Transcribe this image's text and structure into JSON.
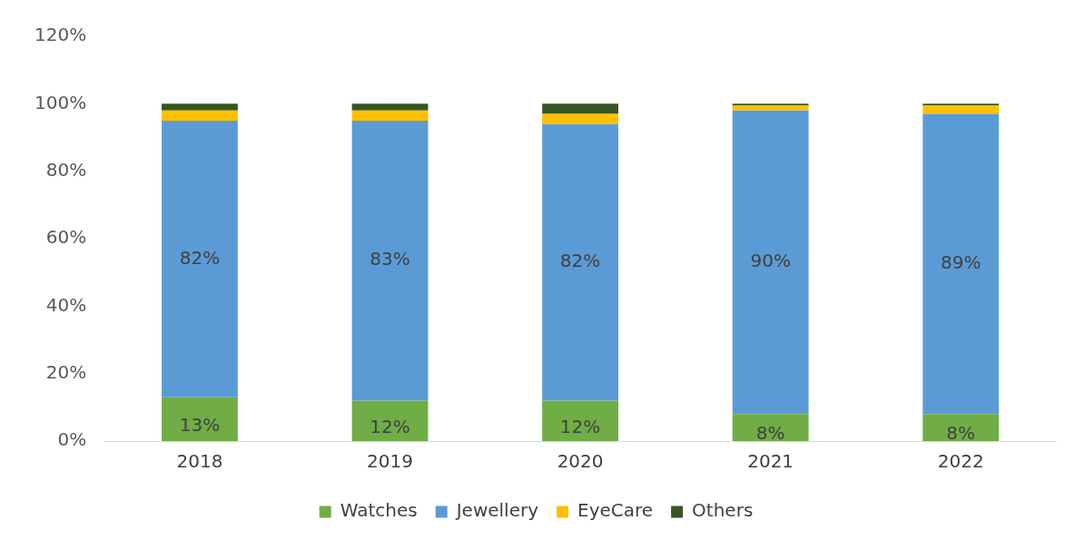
{
  "chart_data": {
    "type": "bar",
    "stacked": true,
    "categories": [
      "2018",
      "2019",
      "2020",
      "2021",
      "2022"
    ],
    "series": [
      {
        "name": "Watches",
        "color": "#70ad47",
        "values": [
          13,
          12,
          12,
          8,
          8
        ],
        "value_labels": [
          "13%",
          "12%",
          "12%",
          "8%",
          "8%"
        ]
      },
      {
        "name": "Jewellery",
        "color": "#5b9bd5",
        "values": [
          82,
          83,
          82,
          90,
          89
        ],
        "value_labels": [
          "82%",
          "83%",
          "82%",
          "90%",
          "89%"
        ]
      },
      {
        "name": "EyeCare",
        "color": "#ffc000",
        "values": [
          3,
          3,
          3,
          1.5,
          2.5
        ]
      },
      {
        "name": "Others",
        "color": "#375623",
        "values": [
          2,
          2,
          3,
          0.5,
          0.5
        ]
      }
    ],
    "ylim": [
      0,
      120
    ],
    "yticks": [
      {
        "value": 0,
        "label": "0%"
      },
      {
        "value": 20,
        "label": "20%"
      },
      {
        "value": 40,
        "label": "40%"
      },
      {
        "value": 60,
        "label": "60%"
      },
      {
        "value": 80,
        "label": "80%"
      },
      {
        "value": 100,
        "label": "100%"
      },
      {
        "value": 120,
        "label": "120%"
      }
    ],
    "grid": false,
    "legend": "bottom"
  }
}
